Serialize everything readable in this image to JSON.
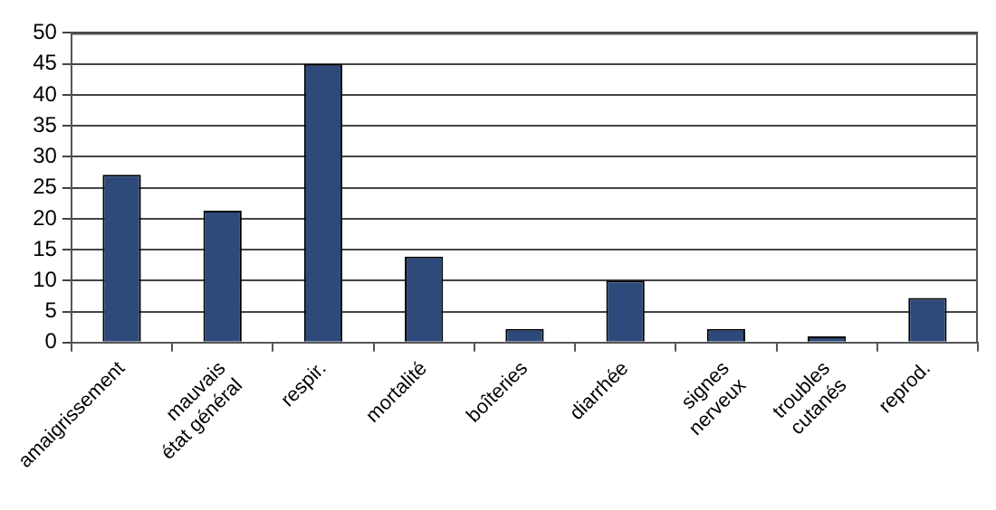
{
  "chart_data": {
    "type": "bar",
    "categories": [
      "amaigrissement",
      "mauvais\nétat général",
      "respir.",
      "mortalité",
      "boîteries",
      "diarrhée",
      "signes\nnerveux",
      "troubles\ncutanés",
      "reprod."
    ],
    "values": [
      27.1,
      21.3,
      45,
      13.9,
      2.2,
      10,
      2.2,
      1,
      7.2
    ],
    "color": "#2e4a7a",
    "ylim": [
      0,
      50
    ],
    "yticks": [
      0,
      5,
      10,
      15,
      20,
      25,
      30,
      35,
      40,
      45,
      50
    ],
    "grid": "y",
    "legend": false
  }
}
